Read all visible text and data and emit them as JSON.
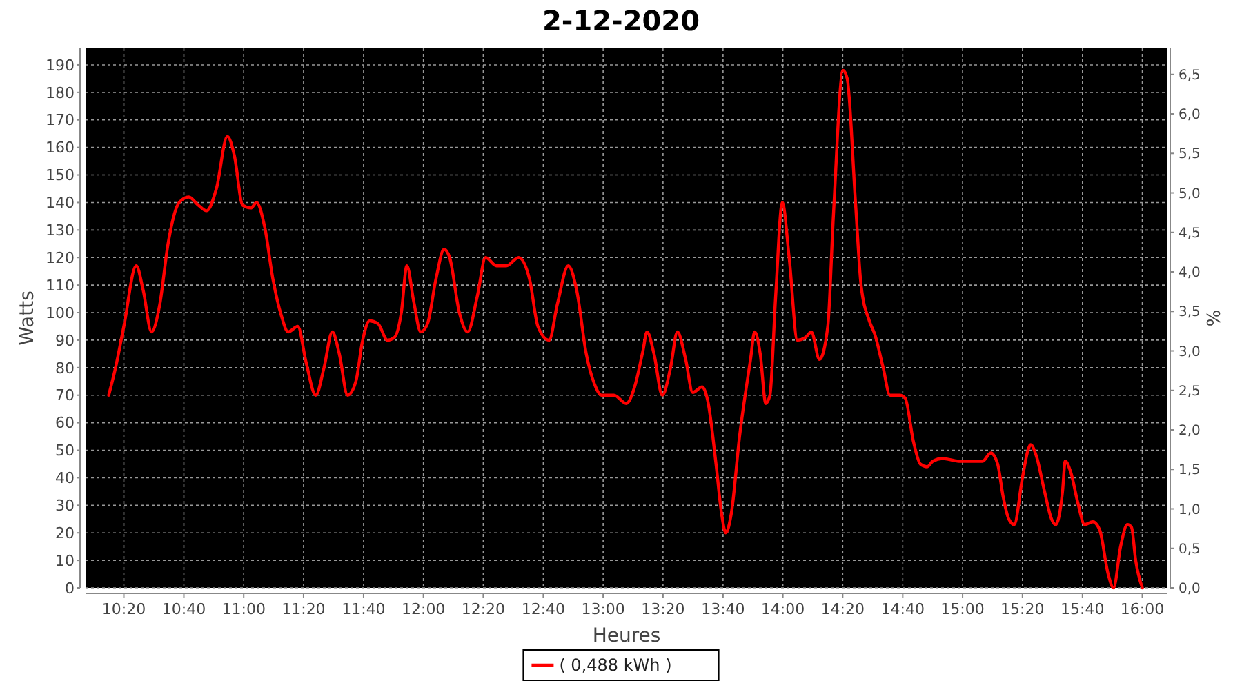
{
  "chart_data": {
    "type": "line",
    "title": "2-12-2020",
    "xlabel": "Heures",
    "ylabel": "Watts",
    "y2label": "%",
    "xlim": [
      10.12,
      16.14
    ],
    "ylim": [
      0,
      196
    ],
    "y2lim": [
      0,
      6.83
    ],
    "xticks": [
      {
        "value": 10.333,
        "label": "10:20"
      },
      {
        "value": 10.667,
        "label": "10:40"
      },
      {
        "value": 11,
        "label": "11:00"
      },
      {
        "value": 11.333,
        "label": "11:20"
      },
      {
        "value": 11.667,
        "label": "11:40"
      },
      {
        "value": 12,
        "label": "12:00"
      },
      {
        "value": 12.333,
        "label": "12:20"
      },
      {
        "value": 12.667,
        "label": "12:40"
      },
      {
        "value": 13,
        "label": "13:00"
      },
      {
        "value": 13.333,
        "label": "13:20"
      },
      {
        "value": 13.667,
        "label": "13:40"
      },
      {
        "value": 14,
        "label": "14:00"
      },
      {
        "value": 14.333,
        "label": "14:20"
      },
      {
        "value": 14.667,
        "label": "14:40"
      },
      {
        "value": 15,
        "label": "15:00"
      },
      {
        "value": 15.333,
        "label": "15:20"
      },
      {
        "value": 15.667,
        "label": "15:40"
      },
      {
        "value": 16,
        "label": "16:00"
      }
    ],
    "yticks": [
      0,
      10,
      20,
      30,
      40,
      50,
      60,
      70,
      80,
      90,
      100,
      110,
      120,
      130,
      140,
      150,
      160,
      170,
      180,
      190
    ],
    "y2ticks": [
      {
        "value": 0,
        "label": "0,0"
      },
      {
        "value": 0.5,
        "label": "0,5"
      },
      {
        "value": 1,
        "label": "1,0"
      },
      {
        "value": 1.5,
        "label": "1,5"
      },
      {
        "value": 2,
        "label": "2,0"
      },
      {
        "value": 2.5,
        "label": "2,5"
      },
      {
        "value": 3,
        "label": "3,0"
      },
      {
        "value": 3.5,
        "label": "3,5"
      },
      {
        "value": 4,
        "label": "4,0"
      },
      {
        "value": 4.5,
        "label": "4,5"
      },
      {
        "value": 5,
        "label": "5,0"
      },
      {
        "value": 5.5,
        "label": "5,5"
      },
      {
        "value": 6,
        "label": "6,0"
      },
      {
        "value": 6.5,
        "label": "6,5"
      }
    ],
    "grid": true,
    "legend": "bottom",
    "marker": "none",
    "line_style": "solid",
    "series": [
      {
        "name": "( 0,488 kWh )",
        "color": "#ff0000",
        "x": [
          10.249,
          10.287,
          10.333,
          10.402,
          10.441,
          10.487,
          10.533,
          10.579,
          10.641,
          10.694,
          10.748,
          10.794,
          10.848,
          10.909,
          10.948,
          10.994,
          11.04,
          11.071,
          11.117,
          11.163,
          11.209,
          11.247,
          11.301,
          11.347,
          11.401,
          11.447,
          11.493,
          11.532,
          11.578,
          11.624,
          11.662,
          11.7,
          11.747,
          11.8,
          11.839,
          11.877,
          11.908,
          11.946,
          11.985,
          12.023,
          12.069,
          12.115,
          12.146,
          12.2,
          12.246,
          12.3,
          12.346,
          12.407,
          12.461,
          12.53,
          12.591,
          12.637,
          12.699,
          12.745,
          12.806,
          12.853,
          12.906,
          12.952,
          12.991,
          13.06,
          13.129,
          13.175,
          13.221,
          13.244,
          13.283,
          13.329,
          13.375,
          13.413,
          13.459,
          13.498,
          13.551,
          13.582,
          13.628,
          13.659,
          13.682,
          13.713,
          13.759,
          13.82,
          13.843,
          13.874,
          13.905,
          13.928,
          13.959,
          13.997,
          14.035,
          14.081,
          14.127,
          14.158,
          14.204,
          14.25,
          14.281,
          14.335,
          14.358,
          14.404,
          14.435,
          14.481,
          14.512,
          14.558,
          14.596,
          14.65,
          14.68,
          14.727,
          14.765,
          14.803,
          14.834,
          14.888,
          14.98,
          15.057,
          15.111,
          15.157,
          15.195,
          15.226,
          15.257,
          15.287,
          15.333,
          15.364,
          15.379,
          15.41,
          15.456,
          15.495,
          15.518,
          15.556,
          15.571,
          15.602,
          15.641,
          15.679,
          15.725,
          15.763,
          15.81,
          15.84,
          15.879,
          15.917,
          15.94,
          15.963,
          16.0
        ],
        "values": [
          70,
          80,
          95,
          117,
          108,
          93,
          103,
          125,
          140,
          142,
          139,
          137,
          145,
          164,
          157,
          139,
          138,
          140,
          131,
          112,
          99,
          93,
          95,
          82,
          70,
          80,
          93,
          85,
          70,
          75,
          90,
          97,
          96,
          90,
          91,
          100,
          117,
          104,
          93,
          96,
          112,
          123,
          120,
          100,
          93,
          106,
          120,
          117,
          117,
          120,
          112,
          95,
          90,
          103,
          117,
          108,
          85,
          74,
          70,
          70,
          67,
          73,
          86,
          93,
          85,
          70,
          80,
          93,
          83,
          71,
          73,
          68,
          45,
          27,
          20,
          27,
          55,
          83,
          93,
          85,
          67,
          70,
          105,
          140,
          120,
          90,
          91,
          93,
          83,
          95,
          135,
          188,
          185,
          140,
          110,
          97,
          92,
          80,
          70,
          70,
          69,
          53,
          45,
          44,
          46,
          47,
          46,
          46,
          46,
          49,
          45,
          33,
          25,
          23,
          40,
          50,
          52,
          48,
          35,
          25,
          23,
          35,
          46,
          42,
          31,
          23,
          24,
          21,
          5,
          0,
          15,
          23,
          22,
          10,
          0
        ]
      }
    ]
  }
}
